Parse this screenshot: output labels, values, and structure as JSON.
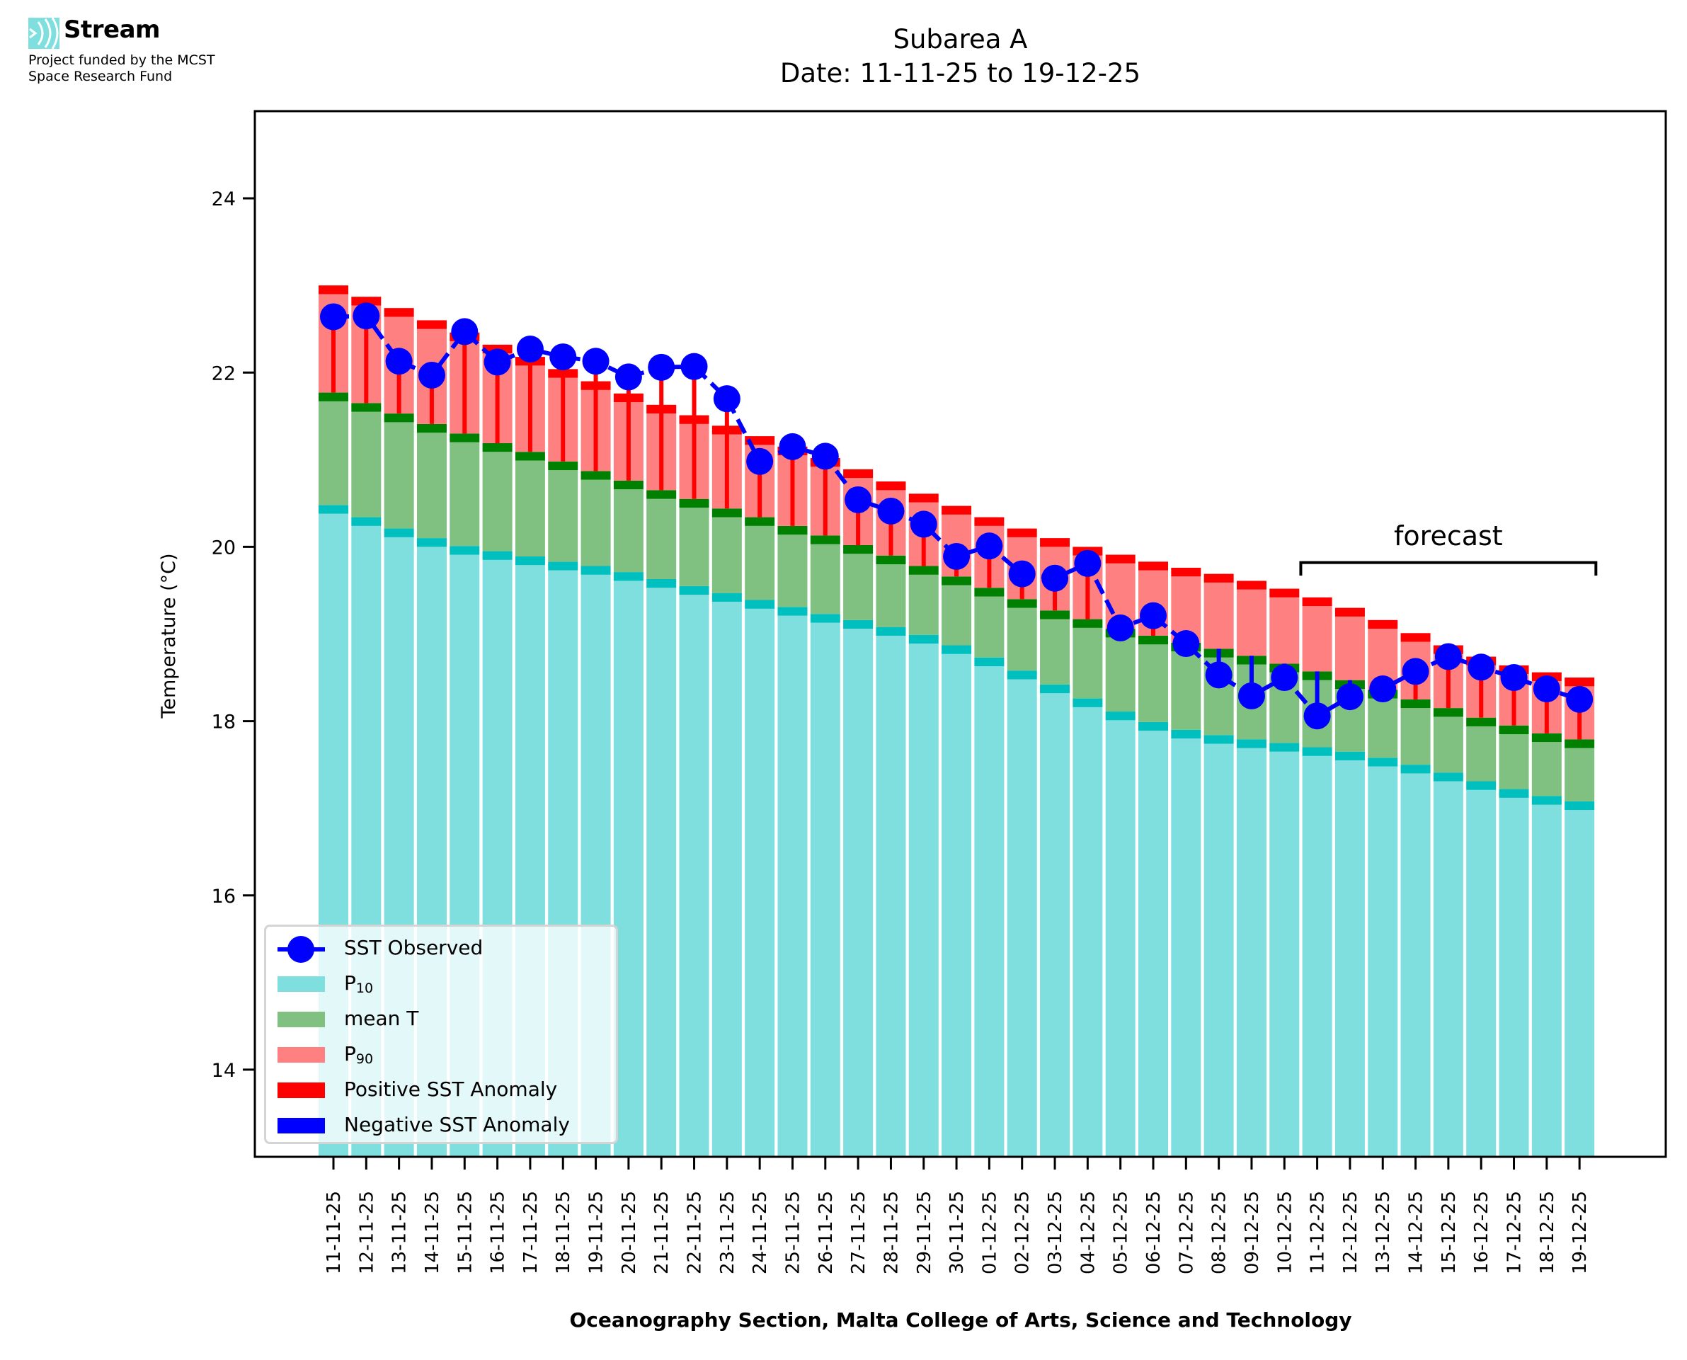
{
  "branding": {
    "name": "Stream",
    "line1": "Project funded by the MCST",
    "line2": "Space Research Fund",
    "icon": "stream-waves-logo-icon",
    "logo_color": "#7fdfdf"
  },
  "header": {
    "title_line1": "Subarea A",
    "title_line2": "Date: 11-11-25 to 19-12-25"
  },
  "annotation": {
    "label": "forecast",
    "start_category": "11-12-25",
    "end_category": "19-12-25"
  },
  "legend": {
    "placement": "lower-left",
    "items": [
      {
        "key": "observed",
        "label": "SST Observed",
        "sub": ""
      },
      {
        "key": "p10",
        "label": "P",
        "sub": "10"
      },
      {
        "key": "mean",
        "label": "mean T",
        "sub": ""
      },
      {
        "key": "p90",
        "label": "P",
        "sub": "90"
      },
      {
        "key": "pos",
        "label": "Positive SST Anomaly",
        "sub": ""
      },
      {
        "key": "neg",
        "label": "Negative SST Anomaly",
        "sub": ""
      }
    ]
  },
  "colors": {
    "p10_fill": "#7fdfdf",
    "p10_cap": "#00bfbf",
    "mean_fill": "#80c080",
    "mean_cap": "#008000",
    "p90_fill": "#ff8080",
    "p90_cap": "#ff0000",
    "observed": "#0000ff",
    "positive_anomaly": "#ff0000",
    "negative_anomaly": "#0000ff"
  },
  "chart_data": {
    "type": "bar",
    "title": "Subarea A\nDate: 11-11-25 to 19-12-25",
    "xlabel": "Oceanography Section, Malta College of Arts, Science and Technology",
    "ylabel": "Temperature (°C)",
    "ylim": [
      13,
      25
    ],
    "yticks": [
      14,
      16,
      18,
      20,
      22,
      24
    ],
    "grid": false,
    "legend_placement": "lower-left",
    "categories": [
      "11-11-25",
      "12-11-25",
      "13-11-25",
      "14-11-25",
      "15-11-25",
      "16-11-25",
      "17-11-25",
      "18-11-25",
      "19-11-25",
      "20-11-25",
      "21-11-25",
      "22-11-25",
      "23-11-25",
      "24-11-25",
      "25-11-25",
      "26-11-25",
      "27-11-25",
      "28-11-25",
      "29-11-25",
      "30-11-25",
      "01-12-25",
      "02-12-25",
      "03-12-25",
      "04-12-25",
      "05-12-25",
      "06-12-25",
      "07-12-25",
      "08-12-25",
      "09-12-25",
      "10-12-25",
      "11-12-25",
      "12-12-25",
      "13-12-25",
      "14-12-25",
      "15-12-25",
      "16-12-25",
      "17-12-25",
      "18-12-25",
      "19-12-25"
    ],
    "series": [
      {
        "name": "P10",
        "type": "bar",
        "values": [
          20.43,
          20.29,
          20.16,
          20.05,
          19.96,
          19.9,
          19.84,
          19.78,
          19.73,
          19.66,
          19.58,
          19.5,
          19.42,
          19.34,
          19.26,
          19.18,
          19.11,
          19.03,
          18.94,
          18.82,
          18.68,
          18.53,
          18.37,
          18.21,
          18.06,
          17.94,
          17.85,
          17.79,
          17.74,
          17.7,
          17.65,
          17.6,
          17.53,
          17.45,
          17.36,
          17.26,
          17.17,
          17.09,
          17.03
        ]
      },
      {
        "name": "mean T",
        "type": "bar",
        "values": [
          21.72,
          21.6,
          21.48,
          21.36,
          21.25,
          21.14,
          21.04,
          20.93,
          20.82,
          20.71,
          20.6,
          20.5,
          20.39,
          20.29,
          20.19,
          20.08,
          19.97,
          19.85,
          19.73,
          19.61,
          19.48,
          19.35,
          19.22,
          19.12,
          19.01,
          18.93,
          18.85,
          18.78,
          18.7,
          18.61,
          18.52,
          18.42,
          18.31,
          18.2,
          18.1,
          17.99,
          17.9,
          17.81,
          17.74
        ]
      },
      {
        "name": "P90",
        "type": "bar",
        "values": [
          22.95,
          22.82,
          22.69,
          22.55,
          22.41,
          22.27,
          22.13,
          21.99,
          21.85,
          21.71,
          21.58,
          21.46,
          21.34,
          21.22,
          21.1,
          20.97,
          20.84,
          20.7,
          20.56,
          20.42,
          20.29,
          20.16,
          20.05,
          19.95,
          19.86,
          19.78,
          19.71,
          19.64,
          19.56,
          19.47,
          19.37,
          19.25,
          19.11,
          18.96,
          18.82,
          18.69,
          18.59,
          18.51,
          18.45
        ]
      },
      {
        "name": "SST Observed",
        "type": "line",
        "values": [
          22.64,
          22.65,
          22.13,
          21.97,
          22.47,
          22.12,
          22.27,
          22.18,
          22.13,
          21.95,
          22.06,
          22.07,
          21.7,
          20.98,
          21.15,
          21.04,
          20.54,
          20.41,
          20.26,
          19.89,
          20.01,
          19.69,
          19.64,
          19.81,
          19.07,
          19.21,
          18.89,
          18.53,
          18.29,
          18.5,
          18.06,
          18.28,
          18.37,
          18.57,
          18.74,
          18.62,
          18.5,
          18.37,
          18.25
        ]
      }
    ],
    "forecast_range": [
      "11-12-25",
      "19-12-25"
    ]
  }
}
